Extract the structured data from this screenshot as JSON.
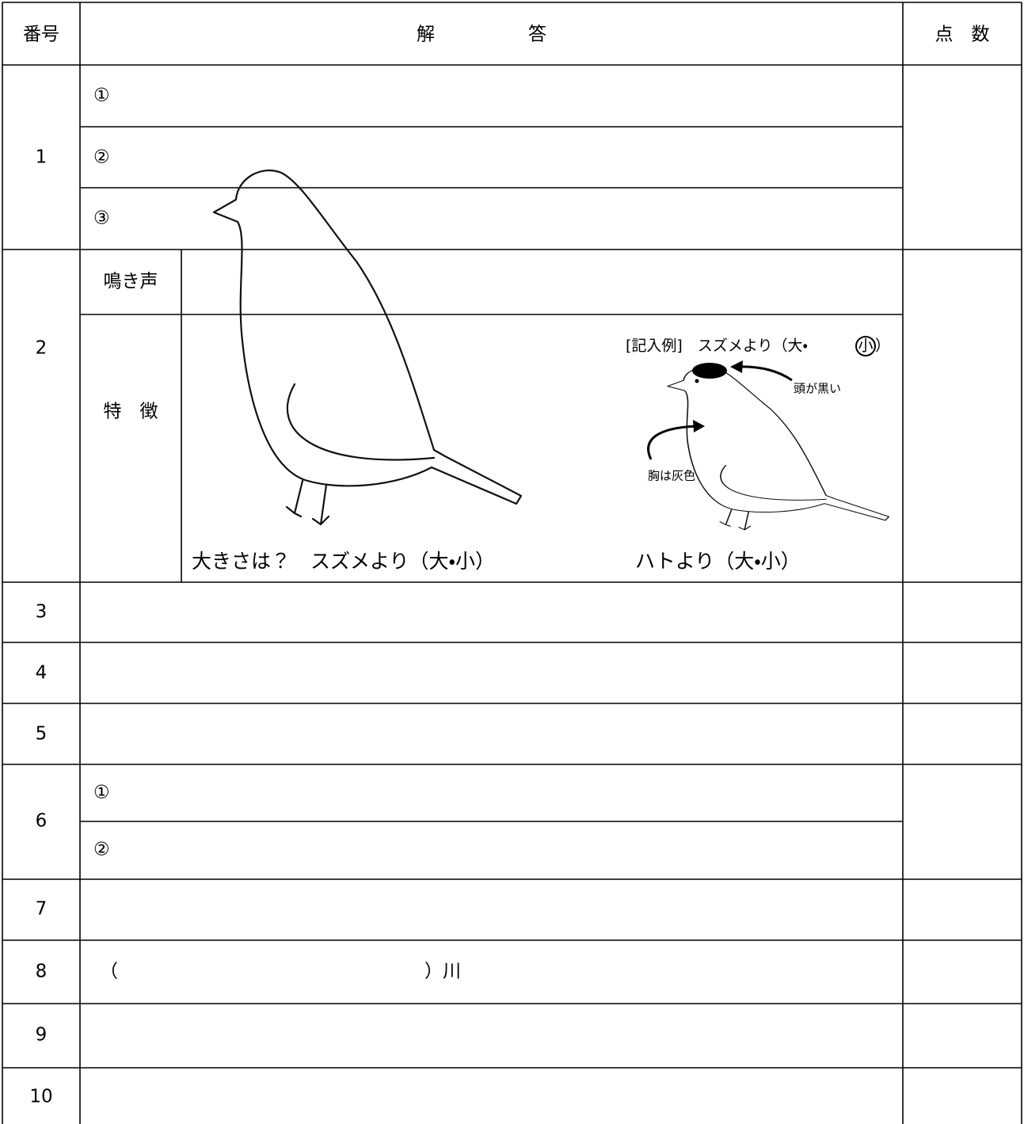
{
  "header": {
    "number": "番号",
    "answer": "解　　答",
    "score": "点　数"
  },
  "questions": [
    {
      "number": "1",
      "parts": [
        "①",
        "②",
        "③"
      ]
    },
    {
      "number": "2",
      "call_label": "鳴き声",
      "feature_label": "特　徴",
      "size_question": "大きさは？　スズメより（大・小）",
      "pigeon_comparison": "ハトより（大・小）",
      "example": {
        "prefix": "[記入例]　スズメより（大・",
        "circled": "小",
        "suffix": "）",
        "head_note": "頭が黒い",
        "chest_note": "胸は灰色"
      }
    },
    {
      "number": "3"
    },
    {
      "number": "4"
    },
    {
      "number": "5"
    },
    {
      "number": "6",
      "parts": [
        "①",
        "②"
      ]
    },
    {
      "number": "7"
    },
    {
      "number": "8",
      "parts": [
        "（",
        "）川"
      ]
    },
    {
      "number": "9"
    },
    {
      "number": "10"
    }
  ]
}
